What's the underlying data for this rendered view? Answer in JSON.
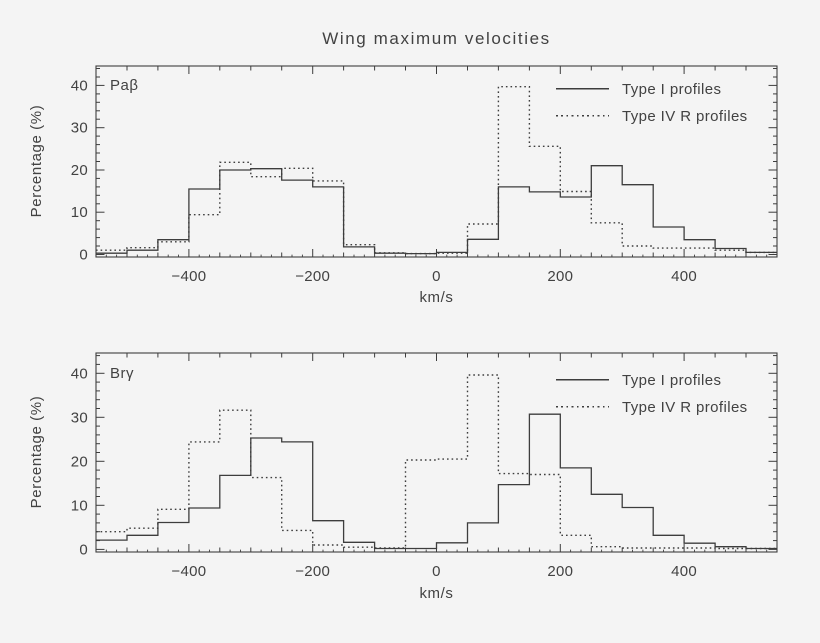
{
  "figure": {
    "title": "Wing maximum velocities",
    "xlabel": "km/s",
    "ylabel": "Percentage (%)",
    "background_color": "#f4f4f4",
    "line_color": "#3d3d3d",
    "text_color": "#424242"
  },
  "legend": {
    "position": "top-right-inside",
    "items": [
      {
        "label": "Type I profiles",
        "style": "solid"
      },
      {
        "label": "Type IV R profiles",
        "style": "dotted"
      }
    ]
  },
  "chart_data": [
    {
      "type": "step-histogram",
      "panel_label": "Paβ",
      "xlabel": "km/s",
      "ylabel": "Percentage (%)",
      "xlim": [
        -550,
        550
      ],
      "ylim": [
        0,
        40
      ],
      "grid": false,
      "bin_start": -550,
      "bin_width": 50,
      "xticks_labeled": [
        -400,
        -200,
        0,
        200,
        400
      ],
      "xticks_minor_step": 50,
      "yticks_labeled": [
        0,
        10,
        20,
        30,
        40
      ],
      "yticks_minor_step": 2,
      "series": [
        {
          "name": "Type I profiles",
          "style": "solid",
          "values": [
            0.3,
            1.0,
            3.5,
            15.5,
            20.0,
            20.3,
            17.6,
            16.0,
            1.8,
            0.3,
            0.2,
            0.5,
            3.6,
            16.0,
            14.8,
            13.6,
            21.0,
            16.5,
            6.5,
            3.5,
            1.4,
            0.5
          ]
        },
        {
          "name": "Type IV R profiles",
          "style": "dotted",
          "values": [
            1.0,
            1.6,
            3.0,
            9.4,
            21.8,
            18.4,
            20.4,
            17.4,
            2.3,
            0.4,
            0.2,
            0.3,
            7.2,
            39.7,
            25.6,
            14.9,
            7.5,
            2.0,
            1.5,
            1.5,
            1.0,
            0.5
          ]
        }
      ]
    },
    {
      "type": "step-histogram",
      "panel_label": "Brγ",
      "xlabel": "km/s",
      "ylabel": "Percentage (%)",
      "xlim": [
        -550,
        550
      ],
      "ylim": [
        0,
        40
      ],
      "grid": false,
      "bin_start": -550,
      "bin_width": 50,
      "xticks_labeled": [
        -400,
        -200,
        0,
        200,
        400
      ],
      "xticks_minor_step": 50,
      "yticks_labeled": [
        0,
        10,
        20,
        30,
        40
      ],
      "yticks_minor_step": 2,
      "series": [
        {
          "name": "Type I profiles",
          "style": "solid",
          "values": [
            2.1,
            3.2,
            6.1,
            9.4,
            16.8,
            25.3,
            24.4,
            6.5,
            1.6,
            0.2,
            0.2,
            1.5,
            6.0,
            14.7,
            30.7,
            18.5,
            12.5,
            9.5,
            3.2,
            1.4,
            0.6,
            0.2
          ]
        },
        {
          "name": "Type IV R profiles",
          "style": "dotted",
          "values": [
            4.0,
            4.8,
            9.1,
            24.4,
            31.6,
            16.3,
            4.3,
            1.0,
            0.5,
            0.3,
            20.3,
            20.5,
            39.6,
            17.2,
            17.0,
            3.2,
            0.6,
            0.3,
            0.3,
            0.3,
            0.2,
            0.2
          ]
        }
      ]
    }
  ]
}
